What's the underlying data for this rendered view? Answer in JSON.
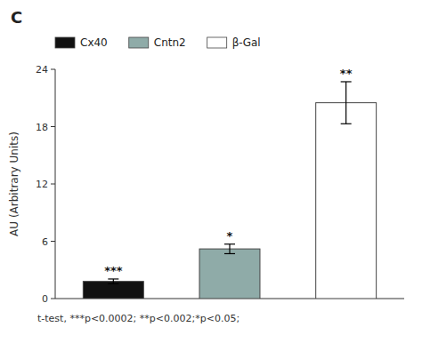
{
  "chart_data": {
    "type": "bar",
    "title": "C",
    "ylabel": "AU (Arbitrary Units)",
    "annotations": [
      "t-test, ***p<0.0002; **p<0.002;*p<0.05;"
    ],
    "categories": [
      "Cx40",
      "Cntn2",
      "β-Gal"
    ],
    "values": [
      1.8,
      5.2,
      20.5
    ],
    "errors": [
      0.25,
      0.5,
      2.2
    ],
    "significance": [
      "***",
      "*",
      "**"
    ],
    "colors": [
      "#111111",
      "#8faba8",
      "#ffffff"
    ],
    "ylim": [
      0,
      24
    ],
    "yticks": [
      0,
      6,
      12,
      18,
      24
    ],
    "grid": false,
    "legend": "top",
    "tick_labels": "y"
  }
}
